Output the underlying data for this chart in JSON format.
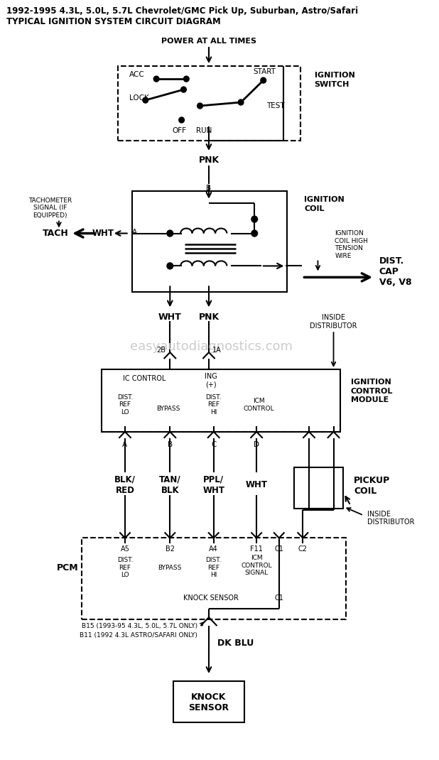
{
  "title_line1": "1992-1995 4.3L, 5.0L, 5.7L Chevrolet/GMC Pick Up, Suburban, Astro/Safari",
  "title_line2": "TYPICAL IGNITION SYSTEM CIRCUIT DIAGRAM",
  "bg_color": "#ffffff",
  "line_color": "#000000",
  "watermark": "easyautodiagnostics.com",
  "watermark_color": "#cccccc",
  "power_label": "POWER AT ALL TIMES",
  "pnk_label": "PNK",
  "ign_switch_label": [
    "IGNITION",
    "SWITCH"
  ],
  "acc_label": "ACC",
  "lock_label": "LOCK",
  "off_label": "OFF",
  "run_label": "RUN",
  "start_label": "START",
  "test_label": "TEST",
  "ign_coil_label": [
    "IGNITION",
    "COIL"
  ],
  "b_label": "B",
  "a_label": "A",
  "wht_label": "WHT",
  "tach_label": "TACH",
  "tach_signal": "TACHOMETER\nSIGNAL (IF\nEQUIPPED)",
  "ign_ht_wire": "IGNITION\nCOIL HIGH\nTENSION\nWIRE",
  "dist_cap_label": "DIST.\nCAP\nV6, V8",
  "wht_pnk": [
    "WHT",
    "PNK"
  ],
  "inside_dist1": "INSIDE\nDISTRIBUTOR",
  "inside_dist2": "INSIDE\nDISTRIBUTOR",
  "2b_label": "2B",
  "1a_label": "1A",
  "icm_label": [
    "IGNITION",
    "CONTROL",
    "MODULE"
  ],
  "ic_control": "IC CONTROL",
  "ing_label": "ING\n(+)",
  "dist_ref_lo": "DIST.\nREF\nLO",
  "bypass_label": "BYPASS",
  "dist_ref_hi": "DIST.\nREF\nHI",
  "icm_control": "ICM\nCONTROL",
  "pin_labels": [
    "A",
    "B",
    "C",
    "D"
  ],
  "wire_labels": [
    "BLK/\nRED",
    "TAN/\nBLK",
    "PPL/\nWHT",
    "WHT"
  ],
  "pickup_coil": "PICKUP\nCOIL",
  "pcm_label": "PCM",
  "pcm_pins": [
    "A5",
    "B2",
    "A4",
    "F11",
    "C1",
    "C2"
  ],
  "pcm_inner": [
    "DIST.\nREF\nLO",
    "BYPASS",
    "DIST.\nREF\nHI",
    "ICM\nCONTROL\nSIGNAL"
  ],
  "knock_sensor_label": "KNOCK SENSOR",
  "c1_label": "C1",
  "dk_blu_label": "DK BLU",
  "b15_label": "B15 (1993-95 4.3L, 5.0L, 5.7L ONLY)",
  "b11_label": "B11 (1992 4.3L ASTRO/SAFARI ONLY)",
  "knock_sensor_box": "KNOCK\nSENSOR"
}
